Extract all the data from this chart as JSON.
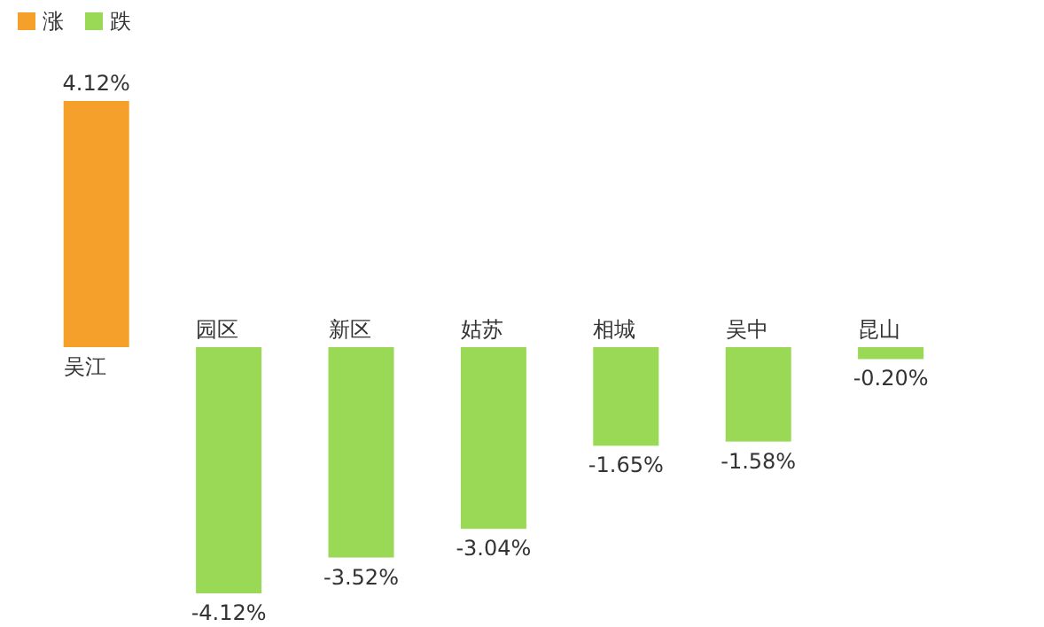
{
  "chart_data": {
    "type": "bar",
    "categories": [
      "吴江",
      "园区",
      "新区",
      "姑苏",
      "相城",
      "吴中",
      "昆山"
    ],
    "stacked": true,
    "legend": "top left",
    "series": [
      {
        "name": "涨",
        "color": "#f5a02a",
        "values": [
          4.12,
          null,
          null,
          null,
          null,
          null,
          null
        ],
        "value_labels": [
          "4.12%",
          null,
          null,
          null,
          null,
          null,
          null
        ]
      },
      {
        "name": "跌",
        "color": "#99d955",
        "values": [
          null,
          -4.12,
          -3.52,
          -3.04,
          -1.65,
          -1.58,
          -0.2
        ],
        "value_labels": [
          null,
          "-4.12%",
          "-3.52%",
          "-3.04%",
          "-1.65%",
          "-1.58%",
          "-0.20%"
        ]
      }
    ]
  }
}
